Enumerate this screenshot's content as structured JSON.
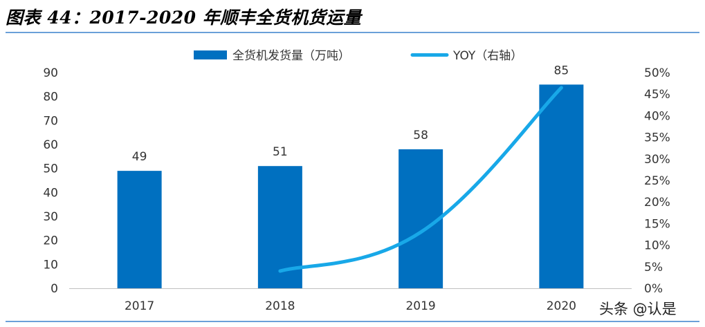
{
  "title": "图表 44：2017-2020 年顺丰全货机货运量",
  "watermark": "头条 @认是",
  "colors": {
    "bar": "#0070c0",
    "line": "#18a8e8",
    "axis": "#bfbfbf",
    "rule": "#6aa0d8",
    "text": "#333333"
  },
  "chart_data": {
    "type": "bar",
    "categories": [
      "2017",
      "2018",
      "2019",
      "2020"
    ],
    "series": [
      {
        "name": "全货机发货量（万吨）",
        "type": "bar",
        "axis": "left",
        "values": [
          49,
          51,
          58,
          85
        ]
      },
      {
        "name": "YOY（右轴）",
        "type": "line",
        "axis": "right",
        "values": [
          null,
          0.04,
          0.13,
          0.465
        ]
      }
    ],
    "data_labels": [
      "49",
      "51",
      "58",
      "85"
    ],
    "y_left": {
      "ylim": [
        0,
        90
      ],
      "ticks": [
        "0",
        "10",
        "20",
        "30",
        "40",
        "50",
        "60",
        "70",
        "80",
        "90"
      ]
    },
    "y_right": {
      "ylim": [
        0,
        0.5
      ],
      "ticks": [
        "0%",
        "5%",
        "10%",
        "15%",
        "20%",
        "25%",
        "30%",
        "35%",
        "40%",
        "45%",
        "50%"
      ]
    },
    "legend": {
      "position": "top",
      "items": [
        "全货机发货量（万吨）",
        "YOY（右轴）"
      ]
    },
    "grid": false
  }
}
